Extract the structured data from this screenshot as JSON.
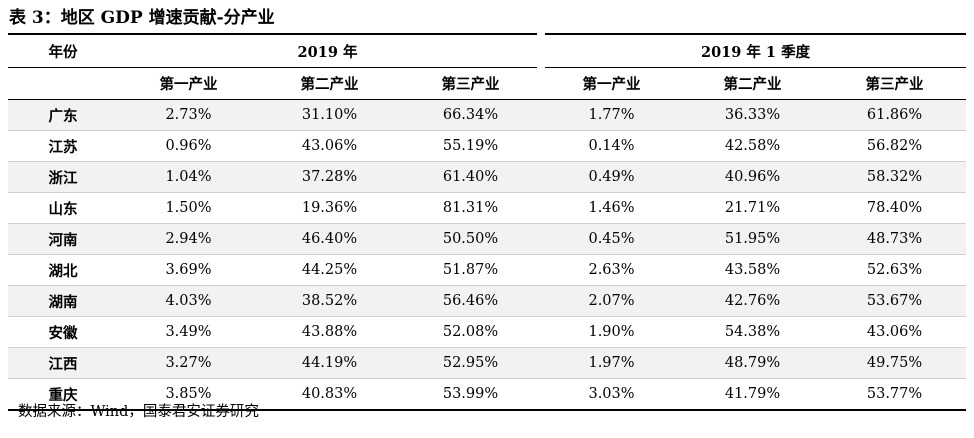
{
  "title": "表 3：地区 GDP 增速贡献-分产业",
  "header": {
    "row_label": "年份",
    "groups": [
      "2019 年",
      "2019 年 1 季度"
    ],
    "subcolumns": [
      "第一产业",
      "第二产业",
      "第三产业",
      "第一产业",
      "第二产业",
      "第三产业"
    ]
  },
  "rows": [
    {
      "region": "广东",
      "values": [
        "2.73%",
        "31.10%",
        "66.34%",
        "1.77%",
        "36.33%",
        "61.86%"
      ]
    },
    {
      "region": "江苏",
      "values": [
        "0.96%",
        "43.06%",
        "55.19%",
        "0.14%",
        "42.58%",
        "56.82%"
      ]
    },
    {
      "region": "浙江",
      "values": [
        "1.04%",
        "37.28%",
        "61.40%",
        "0.49%",
        "40.96%",
        "58.32%"
      ]
    },
    {
      "region": "山东",
      "values": [
        "1.50%",
        "19.36%",
        "81.31%",
        "1.46%",
        "21.71%",
        "78.40%"
      ]
    },
    {
      "region": "河南",
      "values": [
        "2.94%",
        "46.40%",
        "50.50%",
        "0.45%",
        "51.95%",
        "48.73%"
      ]
    },
    {
      "region": "湖北",
      "values": [
        "3.69%",
        "44.25%",
        "51.87%",
        "2.63%",
        "43.58%",
        "52.63%"
      ]
    },
    {
      "region": "湖南",
      "values": [
        "4.03%",
        "38.52%",
        "56.46%",
        "2.07%",
        "42.76%",
        "53.67%"
      ]
    },
    {
      "region": "安徽",
      "values": [
        "3.49%",
        "43.88%",
        "52.08%",
        "1.90%",
        "54.38%",
        "43.06%"
      ]
    },
    {
      "region": "江西",
      "values": [
        "3.27%",
        "44.19%",
        "52.95%",
        "1.97%",
        "48.79%",
        "49.75%"
      ]
    },
    {
      "region": "重庆",
      "values": [
        "3.85%",
        "40.83%",
        "53.99%",
        "3.03%",
        "41.79%",
        "53.77%"
      ]
    }
  ],
  "source": "数据来源：Wind，国泰君安证券研究"
}
